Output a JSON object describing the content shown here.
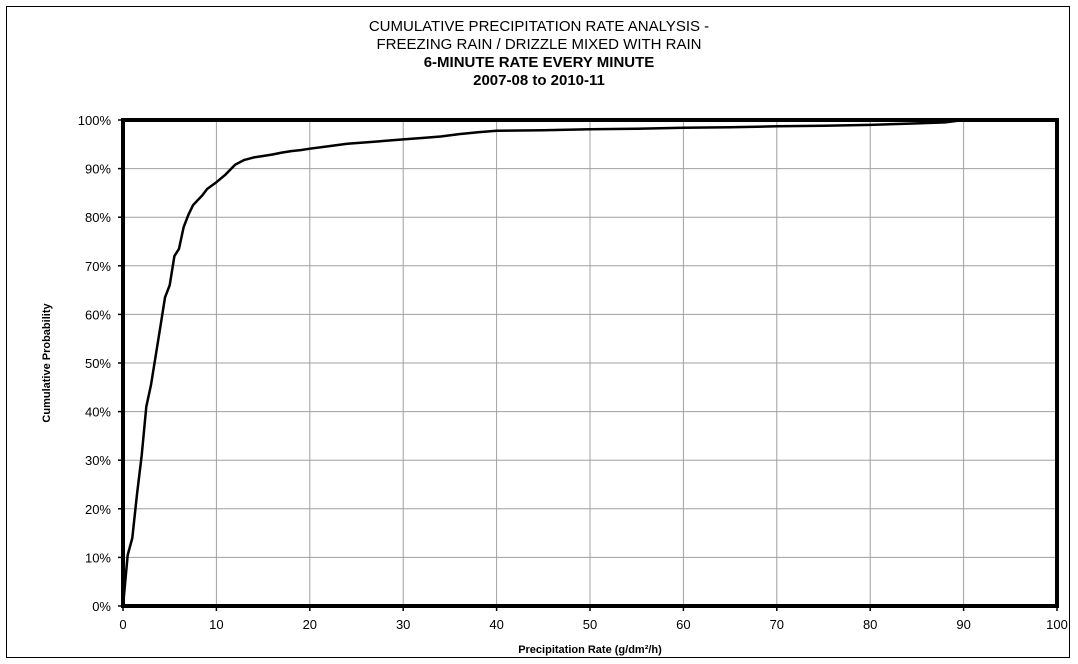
{
  "chart_data": {
    "type": "line",
    "title_lines": [
      "CUMULATIVE PRECIPITATION RATE ANALYSIS -",
      "FREEZING RAIN / DRIZZLE MIXED WITH RAIN",
      "6-MINUTE RATE EVERY MINUTE",
      "2007-08 to 2010-11"
    ],
    "xlabel": "Precipitation Rate (g/dm²/h)",
    "ylabel": "Cumulative Probability",
    "xlim": [
      0,
      100
    ],
    "ylim": [
      0,
      100
    ],
    "x_ticks": [
      "0",
      "10",
      "20",
      "30",
      "40",
      "50",
      "60",
      "70",
      "80",
      "90",
      "100"
    ],
    "y_ticks": [
      "0%",
      "10%",
      "20%",
      "30%",
      "40%",
      "50%",
      "60%",
      "70%",
      "80%",
      "90%",
      "100%"
    ],
    "grid": true,
    "series": [
      {
        "color": "#000000",
        "points": [
          [
            0.0,
            0
          ],
          [
            0.5,
            10.5
          ],
          [
            1.0,
            14
          ],
          [
            1.5,
            23
          ],
          [
            2.0,
            31
          ],
          [
            2.5,
            41
          ],
          [
            3.0,
            45.5
          ],
          [
            3.5,
            51.5
          ],
          [
            4.0,
            57.5
          ],
          [
            4.5,
            63.5
          ],
          [
            5.0,
            66
          ],
          [
            5.5,
            72
          ],
          [
            6.0,
            73.5
          ],
          [
            6.5,
            78
          ],
          [
            7.0,
            80.5
          ],
          [
            7.5,
            82.5
          ],
          [
            8.0,
            83.5
          ],
          [
            8.5,
            84.5
          ],
          [
            9.0,
            85.8
          ],
          [
            10.0,
            87.2
          ],
          [
            11.0,
            88.8
          ],
          [
            12.0,
            90.8
          ],
          [
            13.0,
            91.8
          ],
          [
            14.0,
            92.3
          ],
          [
            15.0,
            92.6
          ],
          [
            16.0,
            92.9
          ],
          [
            17.0,
            93.3
          ],
          [
            18.0,
            93.6
          ],
          [
            19.0,
            93.8
          ],
          [
            20.0,
            94.1
          ],
          [
            22.0,
            94.6
          ],
          [
            24.0,
            95.1
          ],
          [
            26.0,
            95.4
          ],
          [
            28.0,
            95.7
          ],
          [
            30.0,
            96.0
          ],
          [
            32.0,
            96.3
          ],
          [
            34.0,
            96.6
          ],
          [
            36.0,
            97.1
          ],
          [
            38.0,
            97.5
          ],
          [
            40.0,
            97.8
          ],
          [
            45.0,
            97.9
          ],
          [
            50.0,
            98.1
          ],
          [
            55.0,
            98.2
          ],
          [
            60.0,
            98.4
          ],
          [
            65.0,
            98.5
          ],
          [
            70.0,
            98.7
          ],
          [
            75.0,
            98.8
          ],
          [
            80.0,
            99.0
          ],
          [
            85.0,
            99.3
          ],
          [
            88.0,
            99.5
          ],
          [
            90.0,
            100.0
          ]
        ]
      }
    ]
  }
}
